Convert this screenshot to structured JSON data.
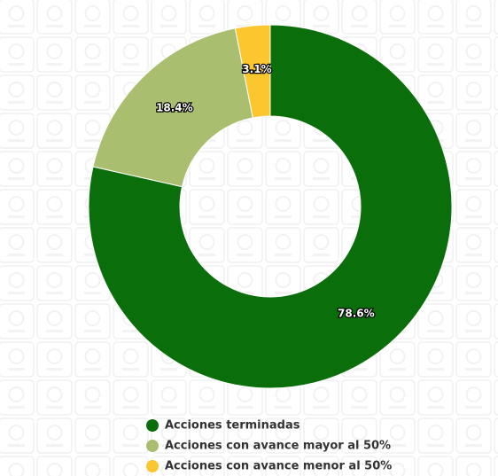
{
  "chart_data": {
    "type": "donut",
    "categories": [
      "Acciones terminadas",
      "Acciones con avance mayor al 50%",
      "Acciones con avance menor al 50%"
    ],
    "values": [
      78.6,
      18.4,
      3.1
    ],
    "value_labels": [
      "78.6%",
      "18.4%",
      "3.1%"
    ],
    "colors": [
      "#0a6e0a",
      "#a9bf6f",
      "#fcc62f"
    ]
  }
}
